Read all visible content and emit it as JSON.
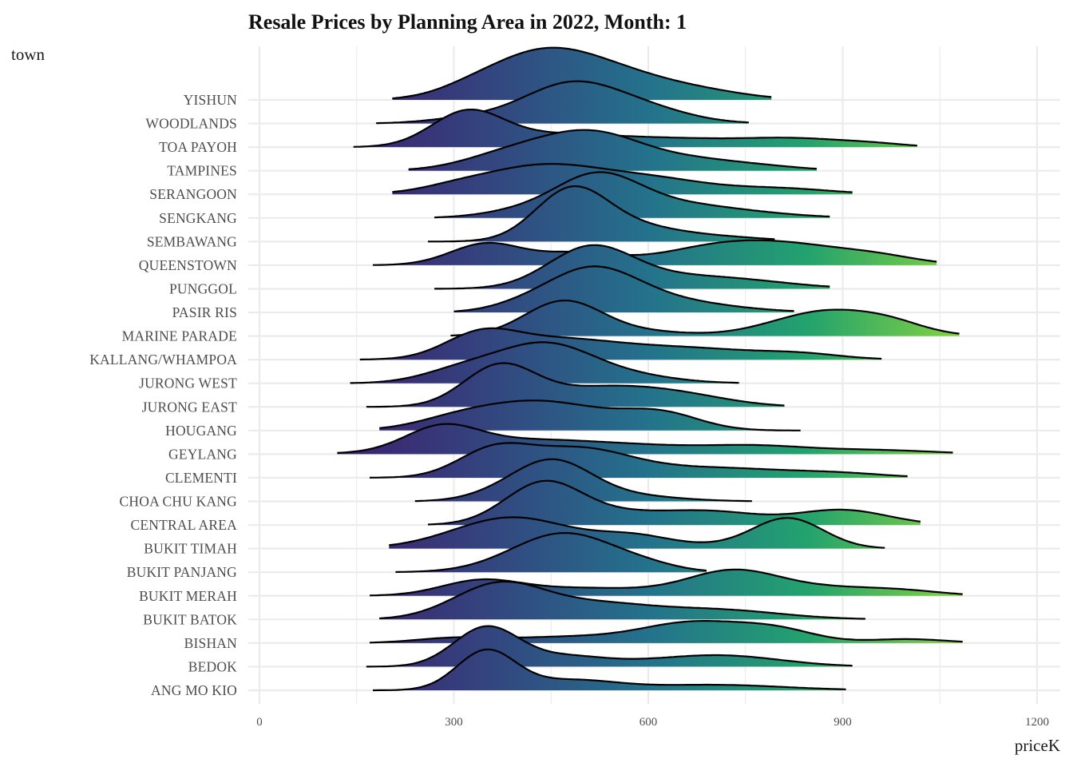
{
  "chart_data": {
    "type": "ridgeline",
    "title": "Resale Prices by Planning Area in 2022, Month: 1",
    "xlabel": "priceK",
    "ylabel": "town",
    "xlim": [
      0,
      1200
    ],
    "x_ticks": [
      "0",
      "300",
      "600",
      "900",
      "1200"
    ],
    "x_tick_values": [
      0,
      300,
      600,
      900,
      1200
    ],
    "x_minor_values": [
      150,
      450,
      750,
      1050
    ],
    "grid": true,
    "fill": "gradient by priceK (viridis)",
    "colors": {
      "low": "#3e1d6c",
      "mid_low": "#33457f",
      "mid": "#24728c",
      "mid_high": "#23a26e",
      "high": "#86d43e",
      "outline": "#000000",
      "grid": "#ebebeb"
    },
    "color_range": [
      110,
      1090
    ],
    "series": [
      {
        "name": "ANG MO KIO",
        "range": [
          175,
          905
        ],
        "components": [
          [
            350,
            45,
            1.0
          ],
          [
            480,
            70,
            0.25
          ],
          [
            700,
            110,
            0.14
          ]
        ]
      },
      {
        "name": "BEDOK",
        "range": [
          165,
          915
        ],
        "components": [
          [
            350,
            50,
            1.0
          ],
          [
            470,
            60,
            0.22
          ],
          [
            720,
            90,
            0.22
          ],
          [
            620,
            120,
            0.1
          ]
        ]
      },
      {
        "name": "BISHAN",
        "range": [
          170,
          1085
        ],
        "components": [
          [
            300,
            60,
            0.12
          ],
          [
            470,
            90,
            0.15
          ],
          [
            670,
            80,
            0.52
          ],
          [
            800,
            60,
            0.3
          ],
          [
            1000,
            60,
            0.1
          ]
        ]
      },
      {
        "name": "BUKIT BATOK",
        "range": [
          185,
          935
        ],
        "components": [
          [
            370,
            70,
            0.9
          ],
          [
            520,
            80,
            0.35
          ],
          [
            700,
            100,
            0.25
          ]
        ]
      },
      {
        "name": "BUKIT MERAH",
        "range": [
          170,
          1085
        ],
        "components": [
          [
            340,
            60,
            0.35
          ],
          [
            500,
            110,
            0.2
          ],
          [
            730,
            70,
            0.6
          ],
          [
            880,
            90,
            0.2
          ],
          [
            1000,
            60,
            0.08
          ]
        ]
      },
      {
        "name": "BUKIT PANJANG",
        "range": [
          210,
          690
        ],
        "components": [
          [
            470,
            80,
            1.0
          ],
          [
            600,
            50,
            0.1
          ]
        ]
      },
      {
        "name": "BUKIT TIMAH",
        "range": [
          200,
          965
        ],
        "components": [
          [
            390,
            90,
            0.8
          ],
          [
            580,
            60,
            0.3
          ],
          [
            815,
            55,
            0.78
          ],
          [
            700,
            50,
            0.05
          ]
        ]
      },
      {
        "name": "CENTRAL AREA",
        "range": [
          260,
          1020
        ],
        "components": [
          [
            440,
            60,
            1.1
          ],
          [
            690,
            80,
            0.35
          ],
          [
            900,
            70,
            0.38
          ],
          [
            560,
            60,
            0.2
          ]
        ]
      },
      {
        "name": "CHOA CHU KANG",
        "range": [
          240,
          760
        ],
        "components": [
          [
            450,
            60,
            1.0
          ],
          [
            560,
            80,
            0.15
          ],
          [
            360,
            50,
            0.1
          ]
        ]
      },
      {
        "name": "CLEMENTI",
        "range": [
          170,
          1000
        ],
        "components": [
          [
            360,
            55,
            0.65
          ],
          [
            490,
            80,
            0.7
          ],
          [
            700,
            120,
            0.25
          ],
          [
            900,
            70,
            0.08
          ]
        ]
      },
      {
        "name": "GEYLANG",
        "range": [
          120,
          1070
        ],
        "components": [
          [
            280,
            55,
            0.55
          ],
          [
            400,
            120,
            0.35
          ],
          [
            770,
            80,
            0.18
          ],
          [
            950,
            90,
            0.1
          ],
          [
            600,
            100,
            0.15
          ]
        ]
      },
      {
        "name": "HOUGANG",
        "range": [
          185,
          835
        ],
        "components": [
          [
            430,
            100,
            0.75
          ],
          [
            620,
            60,
            0.4
          ],
          [
            300,
            60,
            0.15
          ]
        ]
      },
      {
        "name": "JURONG EAST",
        "range": [
          165,
          810
        ],
        "components": [
          [
            370,
            55,
            1.0
          ],
          [
            520,
            90,
            0.45
          ],
          [
            650,
            80,
            0.25
          ]
        ]
      },
      {
        "name": "JURONG WEST",
        "range": [
          140,
          740
        ],
        "components": [
          [
            440,
            75,
            1.0
          ],
          [
            310,
            60,
            0.3
          ],
          [
            580,
            70,
            0.15
          ]
        ]
      },
      {
        "name": "KALLANG/WHAMPOA",
        "range": [
          155,
          960
        ],
        "components": [
          [
            340,
            55,
            0.55
          ],
          [
            450,
            90,
            0.45
          ],
          [
            650,
            120,
            0.3
          ],
          [
            840,
            60,
            0.1
          ]
        ]
      },
      {
        "name": "MARINE PARADE",
        "range": [
          295,
          1080
        ],
        "components": [
          [
            470,
            60,
            0.9
          ],
          [
            600,
            60,
            0.1
          ],
          [
            880,
            85,
            0.65
          ],
          [
            980,
            50,
            0.15
          ]
        ]
      },
      {
        "name": "PASIR RIS",
        "range": [
          300,
          825
        ],
        "components": [
          [
            510,
            70,
            1.0
          ],
          [
            620,
            100,
            0.3
          ],
          [
            400,
            50,
            0.1
          ]
        ]
      },
      {
        "name": "PUNGGOL",
        "range": [
          270,
          880
        ],
        "components": [
          [
            510,
            65,
            1.0
          ],
          [
            650,
            100,
            0.3
          ],
          [
            780,
            80,
            0.08
          ]
        ]
      },
      {
        "name": "QUEENSTOWN",
        "range": [
          175,
          1045
        ],
        "components": [
          [
            350,
            55,
            0.55
          ],
          [
            490,
            60,
            0.3
          ],
          [
            800,
            110,
            0.55
          ],
          [
            680,
            80,
            0.2
          ],
          [
            960,
            60,
            0.12
          ]
        ]
      },
      {
        "name": "SEMBAWANG",
        "range": [
          260,
          795
        ],
        "components": [
          [
            480,
            55,
            1.25
          ],
          [
            570,
            70,
            0.35
          ],
          [
            700,
            80,
            0.12
          ]
        ]
      },
      {
        "name": "SENGKANG",
        "range": [
          270,
          880
        ],
        "components": [
          [
            520,
            65,
            1.05
          ],
          [
            640,
            80,
            0.3
          ],
          [
            760,
            80,
            0.1
          ],
          [
            400,
            60,
            0.15
          ]
        ]
      },
      {
        "name": "SERANGOON",
        "range": [
          205,
          915
        ],
        "components": [
          [
            440,
            100,
            0.75
          ],
          [
            620,
            80,
            0.3
          ],
          [
            800,
            80,
            0.15
          ],
          [
            300,
            50,
            0.08
          ]
        ]
      },
      {
        "name": "TAMPINES",
        "range": [
          230,
          860
        ],
        "components": [
          [
            510,
            80,
            0.95
          ],
          [
            380,
            70,
            0.35
          ],
          [
            680,
            80,
            0.25
          ],
          [
            800,
            60,
            0.05
          ]
        ]
      },
      {
        "name": "TOA PAYOH",
        "range": [
          145,
          1015
        ],
        "components": [
          [
            320,
            55,
            0.85
          ],
          [
            450,
            90,
            0.3
          ],
          [
            640,
            100,
            0.2
          ],
          [
            830,
            80,
            0.2
          ],
          [
            950,
            50,
            0.06
          ]
        ]
      },
      {
        "name": "WOODLANDS",
        "range": [
          180,
          755
        ],
        "components": [
          [
            480,
            75,
            1.0
          ],
          [
            600,
            70,
            0.3
          ],
          [
            320,
            60,
            0.12
          ]
        ]
      },
      {
        "name": "YISHUN",
        "range": [
          205,
          790
        ],
        "components": [
          [
            430,
            85,
            1.1
          ],
          [
            560,
            90,
            0.55
          ],
          [
            700,
            70,
            0.12
          ],
          [
            320,
            50,
            0.1
          ]
        ]
      }
    ]
  }
}
